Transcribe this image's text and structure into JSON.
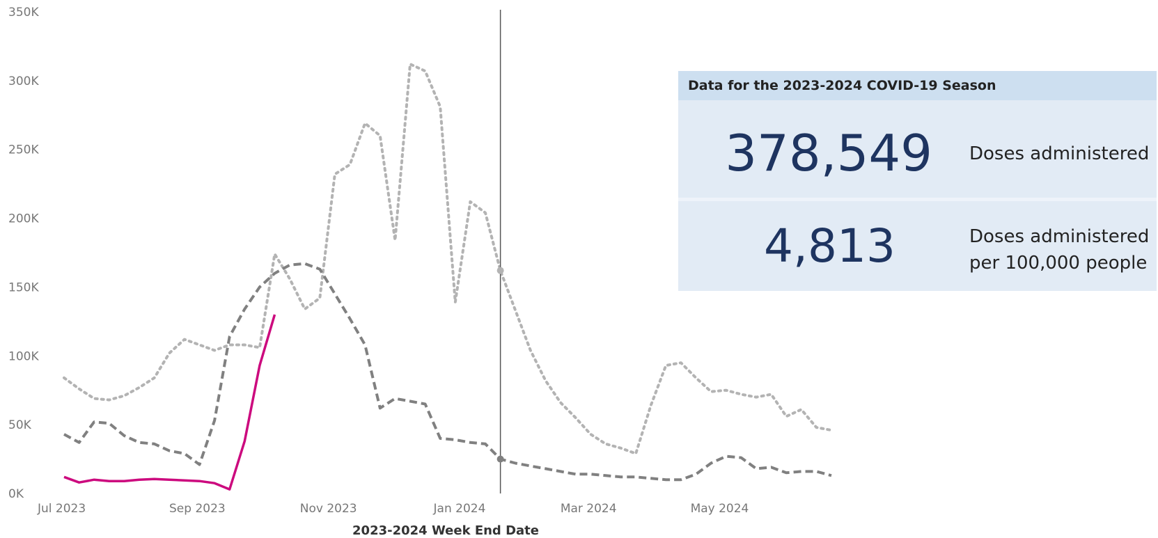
{
  "chart_data": {
    "type": "line",
    "xlabel": "2023-2024 Week End Date",
    "ylabel": "",
    "ylim": [
      0,
      350000
    ],
    "y_ticks": [
      0,
      50000,
      100000,
      150000,
      200000,
      250000,
      300000,
      350000
    ],
    "y_tick_labels": [
      "0K",
      "50K",
      "100K",
      "150K",
      "200K",
      "250K",
      "300K",
      "350K"
    ],
    "x_tick_labels": [
      "Jul 2023",
      "Sep 2023",
      "Nov 2023",
      "Jan 2024",
      "Mar 2024",
      "May 2024"
    ],
    "x_tick_dates": [
      "2023-07-01",
      "2023-09-01",
      "2023-11-01",
      "2024-01-01",
      "2024-03-01",
      "2024-05-01"
    ],
    "reference_line_date": "2024-01-20",
    "grid": false,
    "legend": "none",
    "series": [
      {
        "style": "dotted",
        "color": "#b3b3b3",
        "points": [
          [
            "2023-07-01",
            84000
          ],
          [
            "2023-07-08",
            76000
          ],
          [
            "2023-07-15",
            69000
          ],
          [
            "2023-07-22",
            68000
          ],
          [
            "2023-07-29",
            71000
          ],
          [
            "2023-08-05",
            77000
          ],
          [
            "2023-08-12",
            84000
          ],
          [
            "2023-08-19",
            102000
          ],
          [
            "2023-08-26",
            112000
          ],
          [
            "2023-09-02",
            108000
          ],
          [
            "2023-09-09",
            104000
          ],
          [
            "2023-09-16",
            108000
          ],
          [
            "2023-09-23",
            108000
          ],
          [
            "2023-09-30",
            106000
          ],
          [
            "2023-10-07",
            174000
          ],
          [
            "2023-10-14",
            156000
          ],
          [
            "2023-10-21",
            134000
          ],
          [
            "2023-10-28",
            142000
          ],
          [
            "2023-11-04",
            232000
          ],
          [
            "2023-11-11",
            239000
          ],
          [
            "2023-11-18",
            269000
          ],
          [
            "2023-11-25",
            260000
          ],
          [
            "2023-12-02",
            184000
          ],
          [
            "2023-12-09",
            312000
          ],
          [
            "2023-12-16",
            307000
          ],
          [
            "2023-12-23",
            281000
          ],
          [
            "2023-12-30",
            139000
          ],
          [
            "2024-01-06",
            212000
          ],
          [
            "2024-01-13",
            204000
          ],
          [
            "2024-01-20",
            162000
          ],
          [
            "2024-01-27",
            133000
          ],
          [
            "2024-02-03",
            104000
          ],
          [
            "2024-02-10",
            82000
          ],
          [
            "2024-02-17",
            66000
          ],
          [
            "2024-02-24",
            55000
          ],
          [
            "2024-03-02",
            43000
          ],
          [
            "2024-03-09",
            36000
          ],
          [
            "2024-03-16",
            33000
          ],
          [
            "2024-03-23",
            29000
          ],
          [
            "2024-03-30",
            64000
          ],
          [
            "2024-04-06",
            93000
          ],
          [
            "2024-04-13",
            95000
          ],
          [
            "2024-04-20",
            84000
          ],
          [
            "2024-04-27",
            74000
          ],
          [
            "2024-05-04",
            75000
          ],
          [
            "2024-05-11",
            72000
          ],
          [
            "2024-05-18",
            70000
          ],
          [
            "2024-05-25",
            72000
          ],
          [
            "2024-06-01",
            56000
          ],
          [
            "2024-06-08",
            61000
          ],
          [
            "2024-06-15",
            48000
          ],
          [
            "2024-06-22",
            46000
          ]
        ]
      },
      {
        "style": "dashed",
        "color": "#808080",
        "points": [
          [
            "2023-07-01",
            43000
          ],
          [
            "2023-07-08",
            37000
          ],
          [
            "2023-07-15",
            52000
          ],
          [
            "2023-07-22",
            51000
          ],
          [
            "2023-07-29",
            42000
          ],
          [
            "2023-08-05",
            37000
          ],
          [
            "2023-08-12",
            36000
          ],
          [
            "2023-08-19",
            31000
          ],
          [
            "2023-08-26",
            29000
          ],
          [
            "2023-09-02",
            21000
          ],
          [
            "2023-09-09",
            53000
          ],
          [
            "2023-09-16",
            114000
          ],
          [
            "2023-09-23",
            134000
          ],
          [
            "2023-09-30",
            150000
          ],
          [
            "2023-10-07",
            160000
          ],
          [
            "2023-10-14",
            166000
          ],
          [
            "2023-10-21",
            167000
          ],
          [
            "2023-10-28",
            163000
          ],
          [
            "2023-11-04",
            145000
          ],
          [
            "2023-11-11",
            127000
          ],
          [
            "2023-11-18",
            108000
          ],
          [
            "2023-11-25",
            62000
          ],
          [
            "2023-12-02",
            69000
          ],
          [
            "2023-12-09",
            67000
          ],
          [
            "2023-12-16",
            65000
          ],
          [
            "2023-12-23",
            40000
          ],
          [
            "2023-12-30",
            39000
          ],
          [
            "2024-01-06",
            37000
          ],
          [
            "2024-01-13",
            36000
          ],
          [
            "2024-01-20",
            25000
          ],
          [
            "2024-01-27",
            22000
          ],
          [
            "2024-02-03",
            20000
          ],
          [
            "2024-02-10",
            18000
          ],
          [
            "2024-02-17",
            16000
          ],
          [
            "2024-02-24",
            14000
          ],
          [
            "2024-03-02",
            14000
          ],
          [
            "2024-03-09",
            13000
          ],
          [
            "2024-03-16",
            12000
          ],
          [
            "2024-03-23",
            12000
          ],
          [
            "2024-03-30",
            11000
          ],
          [
            "2024-04-06",
            10000
          ],
          [
            "2024-04-13",
            10000
          ],
          [
            "2024-04-20",
            14000
          ],
          [
            "2024-04-27",
            22000
          ],
          [
            "2024-05-04",
            27000
          ],
          [
            "2024-05-11",
            26000
          ],
          [
            "2024-05-18",
            18000
          ],
          [
            "2024-05-25",
            19000
          ],
          [
            "2024-06-01",
            15000
          ],
          [
            "2024-06-08",
            16000
          ],
          [
            "2024-06-15",
            16000
          ],
          [
            "2024-06-22",
            13000
          ]
        ]
      },
      {
        "style": "solid",
        "color": "#cc0a7e",
        "points": [
          [
            "2023-07-01",
            12000
          ],
          [
            "2023-07-08",
            8000
          ],
          [
            "2023-07-15",
            10000
          ],
          [
            "2023-07-22",
            9000
          ],
          [
            "2023-07-29",
            9000
          ],
          [
            "2023-08-05",
            10000
          ],
          [
            "2023-08-12",
            10500
          ],
          [
            "2023-08-19",
            10000
          ],
          [
            "2023-08-26",
            9500
          ],
          [
            "2023-09-02",
            9000
          ],
          [
            "2023-09-09",
            7500
          ],
          [
            "2023-09-16",
            3000
          ],
          [
            "2023-09-23",
            38000
          ],
          [
            "2023-09-30",
            93000
          ],
          [
            "2023-10-07",
            130000
          ]
        ]
      }
    ],
    "markers": [
      {
        "series": 0,
        "date": "2024-01-20",
        "value": 162000
      },
      {
        "series": 1,
        "date": "2024-01-20",
        "value": 25000
      }
    ]
  },
  "kpi": {
    "title": "Data for the 2023-2024 COVID-19 Season",
    "rows": [
      {
        "value": "378,549",
        "label": "Doses administered"
      },
      {
        "value": "4,813",
        "label": "Doses administered per 100,000 people"
      }
    ],
    "colors": {
      "header_bg": "#cddff0",
      "body_bg": "#e2ebf5",
      "value": "#1e3460"
    }
  }
}
